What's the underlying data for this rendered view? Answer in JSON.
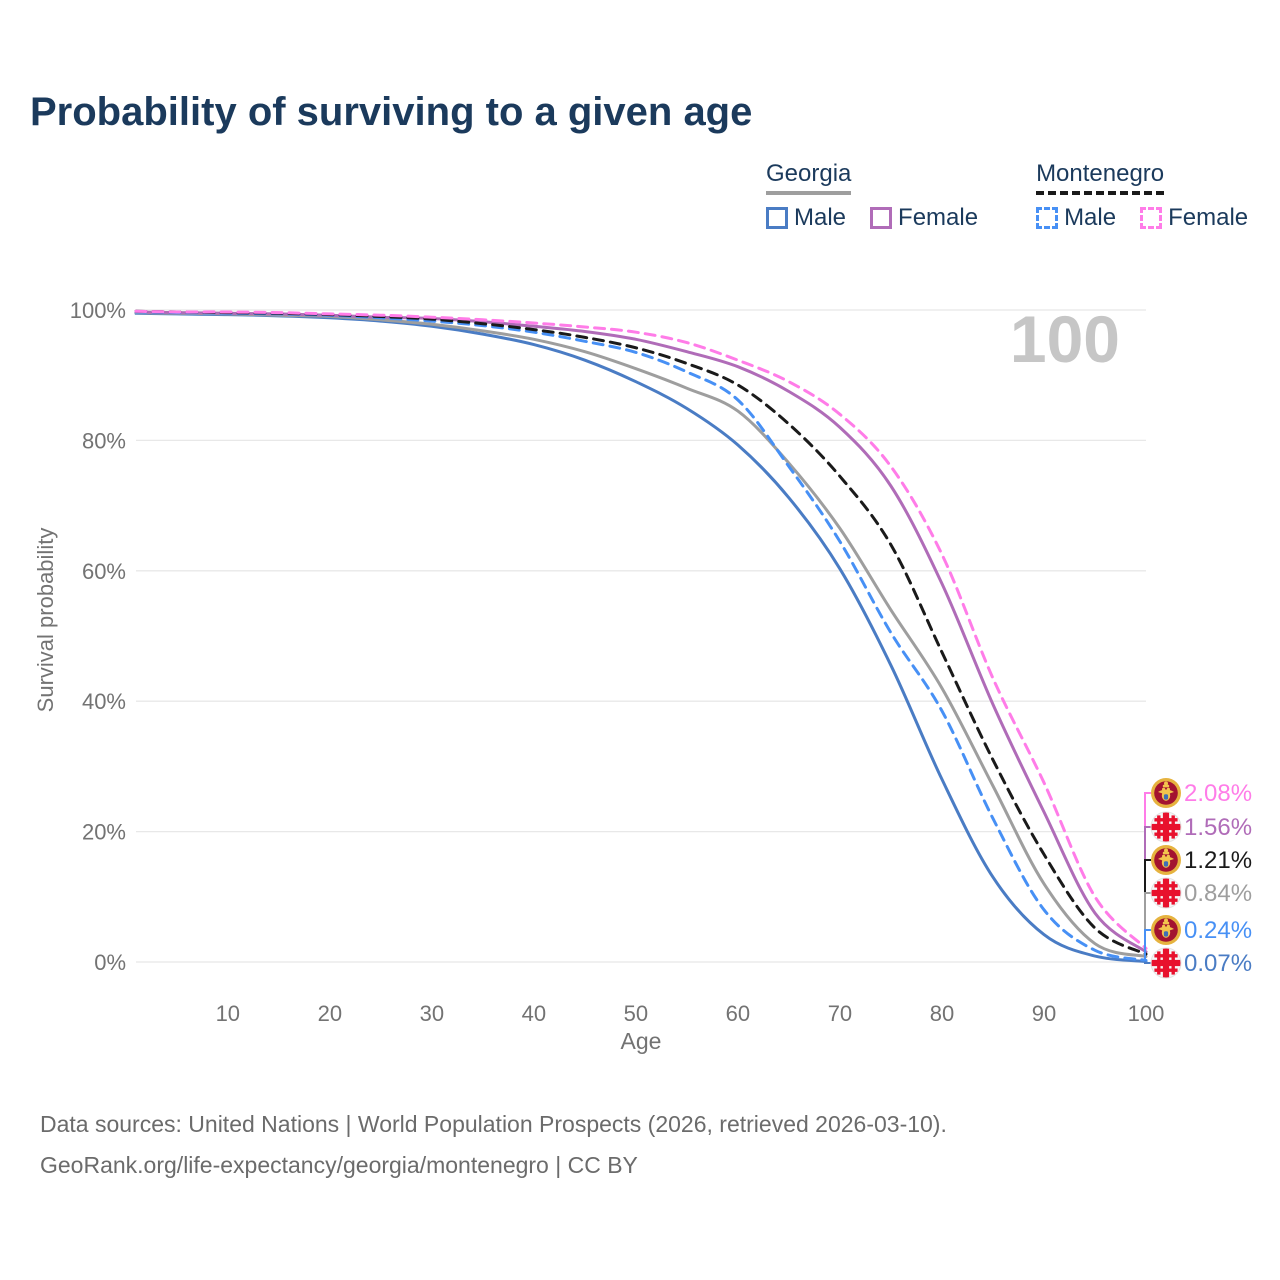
{
  "title": "Probability of surviving to a given age",
  "legend": {
    "groups": [
      {
        "name": "Georgia",
        "underline": "solid",
        "underline_color": "#9e9e9e",
        "items": [
          {
            "label": "Male",
            "color": "#4a7cc4",
            "dashed": false
          },
          {
            "label": "Female",
            "color": "#b06cb8",
            "dashed": false
          }
        ]
      },
      {
        "name": "Montenegro",
        "underline": "dashed",
        "underline_color": "#1a1a1a",
        "items": [
          {
            "label": "Male",
            "color": "#4790f5",
            "dashed": true
          },
          {
            "label": "Female",
            "color": "#ff7ce8",
            "dashed": true
          }
        ]
      }
    ]
  },
  "watermark": "100",
  "chart_data": {
    "type": "line",
    "title": "Probability of surviving to a given age",
    "xlabel": "Age",
    "ylabel": "Survival probability",
    "xlim": [
      1,
      100
    ],
    "ylim": [
      0,
      100
    ],
    "x_ticks": [
      10,
      20,
      30,
      40,
      50,
      60,
      70,
      80,
      90,
      100
    ],
    "y_ticks": [
      {
        "value": 0,
        "label": "0%"
      },
      {
        "value": 20,
        "label": "20%"
      },
      {
        "value": 40,
        "label": "40%"
      },
      {
        "value": 60,
        "label": "60%"
      },
      {
        "value": 80,
        "label": "80%"
      },
      {
        "value": 100,
        "label": "100%"
      }
    ],
    "grid": true,
    "legend_position": "top-right",
    "ages": [
      1,
      5,
      10,
      15,
      20,
      25,
      30,
      35,
      40,
      45,
      50,
      55,
      60,
      65,
      70,
      75,
      80,
      85,
      90,
      95,
      100
    ],
    "series": [
      {
        "name": "Georgia Male",
        "country": "Georgia",
        "sex": "male",
        "color": "#4a7cc4",
        "dashed": false,
        "values": [
          99.5,
          99.4,
          99.3,
          99.1,
          98.8,
          98.3,
          97.5,
          96.3,
          94.7,
          92.3,
          89.0,
          84.9,
          79.3,
          71.2,
          60.3,
          45.5,
          28.0,
          13.0,
          4.2,
          0.9,
          0.07
        ]
      },
      {
        "name": "Georgia (both sexes)",
        "country": "Georgia",
        "sex": "both",
        "color": "#9e9e9e",
        "dashed": false,
        "values": [
          99.6,
          99.5,
          99.4,
          99.2,
          99.0,
          98.5,
          97.8,
          96.8,
          95.5,
          93.6,
          91.0,
          88.0,
          84.5,
          76.5,
          66.5,
          54.0,
          42.0,
          27.0,
          12.0,
          2.8,
          0.84
        ]
      },
      {
        "name": "Georgia Female",
        "country": "Georgia",
        "sex": "female",
        "color": "#b06cb8",
        "dashed": false,
        "values": [
          99.7,
          99.6,
          99.5,
          99.4,
          99.2,
          98.9,
          98.7,
          98.2,
          97.5,
          96.7,
          95.5,
          93.6,
          91.3,
          87.5,
          82.0,
          73.0,
          58.0,
          39.5,
          23.0,
          7.5,
          1.56
        ]
      },
      {
        "name": "Montenegro Male",
        "country": "Montenegro",
        "sex": "male",
        "color": "#4790f5",
        "dashed": true,
        "values": [
          99.7,
          99.6,
          99.5,
          99.4,
          99.2,
          98.8,
          98.3,
          97.6,
          96.6,
          95.2,
          93.5,
          90.5,
          86.2,
          76.0,
          64.5,
          50.5,
          38.5,
          22.0,
          8.0,
          1.8,
          0.24
        ]
      },
      {
        "name": "Montenegro (both sexes)",
        "country": "Montenegro",
        "sex": "both",
        "color": "#1a1a1a",
        "dashed": true,
        "values": [
          99.8,
          99.7,
          99.6,
          99.5,
          99.3,
          99.0,
          98.6,
          97.9,
          97.0,
          95.8,
          94.2,
          91.8,
          88.5,
          82.5,
          74.5,
          64.0,
          47.5,
          31.0,
          16.5,
          5.2,
          1.21
        ]
      },
      {
        "name": "Montenegro Female",
        "country": "Montenegro",
        "sex": "female",
        "color": "#ff7ce8",
        "dashed": true,
        "values": [
          99.8,
          99.7,
          99.7,
          99.6,
          99.4,
          99.2,
          98.9,
          98.5,
          98.0,
          97.4,
          96.6,
          95.0,
          92.3,
          89.0,
          84.0,
          76.0,
          62.5,
          43.5,
          27.5,
          10.0,
          2.08
        ]
      }
    ],
    "end_labels": [
      {
        "text": "2.08%",
        "series": "Montenegro Female",
        "flag": "montenegro",
        "color": "#ff7ce8"
      },
      {
        "text": "1.56%",
        "series": "Georgia Female",
        "flag": "georgia",
        "color": "#b06cb8"
      },
      {
        "text": "1.21%",
        "series": "Montenegro (both sexes)",
        "flag": "montenegro",
        "color": "#1a1a1a"
      },
      {
        "text": "0.84%",
        "series": "Georgia (both sexes)",
        "flag": "georgia",
        "color": "#9e9e9e"
      },
      {
        "text": "0.24%",
        "series": "Montenegro Male",
        "flag": "montenegro",
        "color": "#4790f5"
      },
      {
        "text": "0.07%",
        "series": "Georgia Male",
        "flag": "georgia",
        "color": "#4a7cc4"
      }
    ]
  },
  "footer": {
    "line1": "Data sources: United Nations | World Population Prospects (2026, retrieved 2026-03-10).",
    "line2": "GeoRank.org/life-expectancy/georgia/montenegro | CC BY"
  }
}
